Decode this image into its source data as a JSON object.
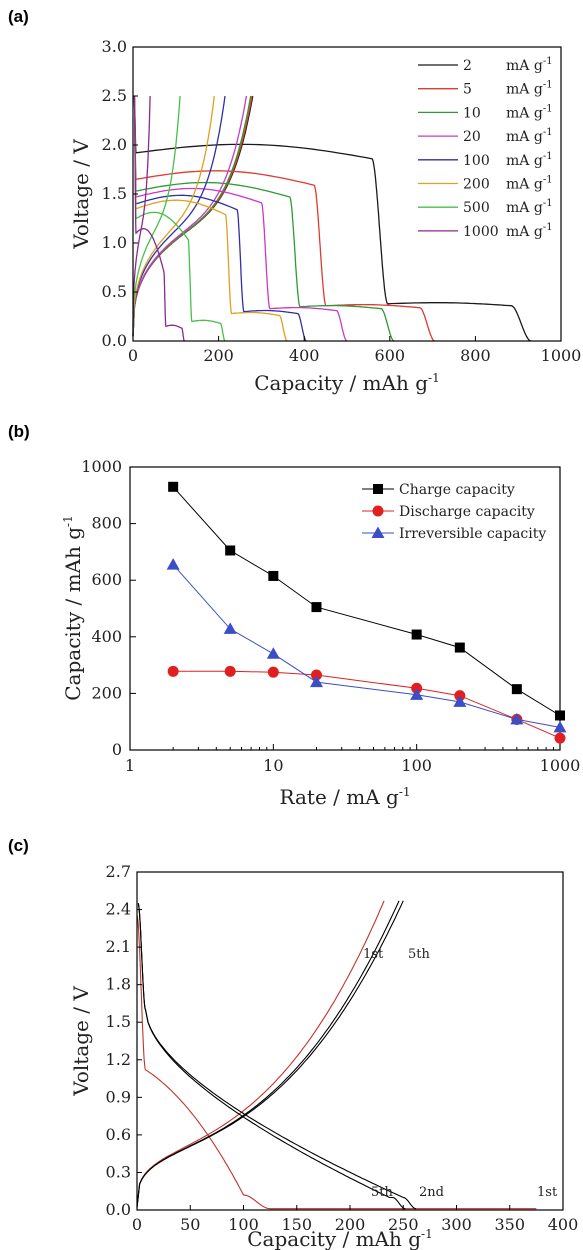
{
  "panels": {
    "a": "(a)",
    "b": "(b)",
    "c": "(c)"
  },
  "chart_data": [
    {
      "type": "line",
      "panel": "(a)",
      "xlabel": "Capacity / mAh g",
      "xlabel_sup": "-1",
      "ylabel": "Voltage / V",
      "xlim": [
        0,
        1000
      ],
      "ylim": [
        0,
        3.0
      ],
      "xticks": [
        0,
        200,
        400,
        600,
        800,
        1000
      ],
      "yticks": [
        0.0,
        0.5,
        1.0,
        1.5,
        2.0,
        2.5,
        3.0
      ],
      "ytick_labels": [
        "0.0",
        "0.5",
        "1.0",
        "1.5",
        "2.0",
        "2.5",
        "3.0"
      ],
      "legend_position": "top-right",
      "grid": false,
      "series": [
        {
          "name": "2",
          "unit": "mA g",
          "unit_sup": "-1",
          "color": "#1a1a1a",
          "discharge_capacity": 930,
          "plateau_voltage": 2.02,
          "low_plateau": 0.38,
          "charge_capacity": 280
        },
        {
          "name": "5",
          "unit": "mA g",
          "unit_sup": "-1",
          "color": "#e03a32",
          "discharge_capacity": 705,
          "plateau_voltage": 1.75,
          "low_plateau": 0.36,
          "charge_capacity": 278
        },
        {
          "name": "10",
          "unit": "mA g",
          "unit_sup": "-1",
          "color": "#2e9a33",
          "discharge_capacity": 610,
          "plateau_voltage": 1.63,
          "low_plateau": 0.35,
          "charge_capacity": 275
        },
        {
          "name": "20",
          "unit": "mA g",
          "unit_sup": "-1",
          "color": "#c83ac2",
          "discharge_capacity": 500,
          "plateau_voltage": 1.57,
          "low_plateau": 0.33,
          "charge_capacity": 265
        },
        {
          "name": "100",
          "unit": "mA g",
          "unit_sup": "-1",
          "color": "#2f2fa8",
          "discharge_capacity": 405,
          "plateau_voltage": 1.5,
          "low_plateau": 0.3,
          "charge_capacity": 215
        },
        {
          "name": "200",
          "unit": "mA g",
          "unit_sup": "-1",
          "color": "#e0a020",
          "discharge_capacity": 360,
          "plateau_voltage": 1.45,
          "low_plateau": 0.28,
          "charge_capacity": 190
        },
        {
          "name": "500",
          "unit": "mA g",
          "unit_sup": "-1",
          "color": "#46c04a",
          "discharge_capacity": 215,
          "plateau_voltage": 1.35,
          "low_plateau": 0.2,
          "charge_capacity": 110
        },
        {
          "name": "1000",
          "unit": "mA g",
          "unit_sup": "-1",
          "color": "#8a2a8c",
          "discharge_capacity": 120,
          "plateau_voltage": 1.2,
          "low_plateau": 0.15,
          "charge_capacity": 40
        }
      ]
    },
    {
      "type": "line",
      "panel": "(b)",
      "xlabel": "Rate / mA g",
      "xlabel_sup": "-1",
      "ylabel": "Capacity / mAh g",
      "ylabel_sup": "-1",
      "xscale": "log",
      "xlim": [
        1,
        1000
      ],
      "ylim": [
        0,
        1000
      ],
      "xticks": [
        1,
        10,
        100,
        1000
      ],
      "yticks": [
        0,
        200,
        400,
        600,
        800,
        1000
      ],
      "legend_position": "top-right",
      "x": [
        2,
        5,
        10,
        20,
        100,
        200,
        500,
        1000
      ],
      "series": [
        {
          "name": "Charge capacity",
          "color": "#000000",
          "marker": "square",
          "values": [
            930,
            705,
            615,
            505,
            408,
            362,
            215,
            122
          ]
        },
        {
          "name": "Discharge capacity",
          "color": "#e02020",
          "marker": "circle",
          "values": [
            278,
            278,
            275,
            265,
            218,
            192,
            108,
            42
          ]
        },
        {
          "name": "Irreversible capacity",
          "color": "#3a4ec8",
          "marker": "triangle",
          "values": [
            655,
            428,
            340,
            240,
            195,
            170,
            108,
            80
          ]
        }
      ]
    },
    {
      "type": "line",
      "panel": "(c)",
      "xlabel": "Capacity / mAh g",
      "xlabel_sup": "-1",
      "ylabel": "Voltage / V",
      "xlim": [
        0,
        400
      ],
      "ylim": [
        0,
        2.7
      ],
      "xticks": [
        0,
        50,
        100,
        150,
        200,
        250,
        300,
        350,
        400
      ],
      "yticks": [
        0.0,
        0.3,
        0.6,
        0.9,
        1.2,
        1.5,
        1.8,
        2.1,
        2.4,
        2.7
      ],
      "ytick_labels": [
        "0.0",
        "0.3",
        "0.6",
        "0.9",
        "1.2",
        "1.5",
        "1.8",
        "2.1",
        "2.4",
        "2.7"
      ],
      "annotations": [
        "1st",
        "5th",
        "5th",
        "2nd",
        "1st"
      ],
      "series": [
        {
          "name": "1st",
          "color": "#c0342c",
          "discharge_capacity": 375,
          "charge_capacity": 232
        },
        {
          "name": "2nd",
          "color": "#000000",
          "discharge_capacity": 262,
          "charge_capacity": 246
        },
        {
          "name": "5th",
          "color": "#000000",
          "discharge_capacity": 252,
          "charge_capacity": 250
        }
      ]
    }
  ]
}
